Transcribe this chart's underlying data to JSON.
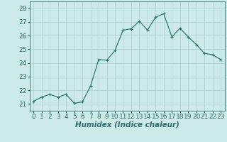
{
  "x": [
    0,
    1,
    2,
    3,
    4,
    5,
    6,
    7,
    8,
    9,
    10,
    11,
    12,
    13,
    14,
    15,
    16,
    17,
    18,
    19,
    20,
    21,
    22,
    23
  ],
  "y": [
    21.2,
    21.5,
    21.7,
    21.5,
    21.7,
    21.05,
    21.15,
    22.3,
    24.25,
    24.2,
    24.9,
    26.4,
    26.5,
    27.05,
    26.4,
    27.35,
    27.6,
    25.9,
    26.55,
    25.9,
    25.35,
    24.7,
    24.6,
    24.25
  ],
  "line_color": "#2d7d6e",
  "marker": "+",
  "bg_color": "#cceae7",
  "grid_color": "#b0d4d0",
  "xlabel": "Humidex (Indice chaleur)",
  "xlabel_style": "italic",
  "xlabel_weight": "bold",
  "ylim": [
    20.5,
    28.5
  ],
  "xlim": [
    -0.5,
    23.5
  ],
  "yticks": [
    21,
    22,
    23,
    24,
    25,
    26,
    27,
    28
  ],
  "xticks": [
    0,
    1,
    2,
    3,
    4,
    5,
    6,
    7,
    8,
    9,
    10,
    11,
    12,
    13,
    14,
    15,
    16,
    17,
    18,
    19,
    20,
    21,
    22,
    23
  ],
  "font_size": 6.5,
  "xlabel_fontsize": 7.5,
  "tick_color": "#2d6e6a",
  "label_color": "#2d6e6a"
}
